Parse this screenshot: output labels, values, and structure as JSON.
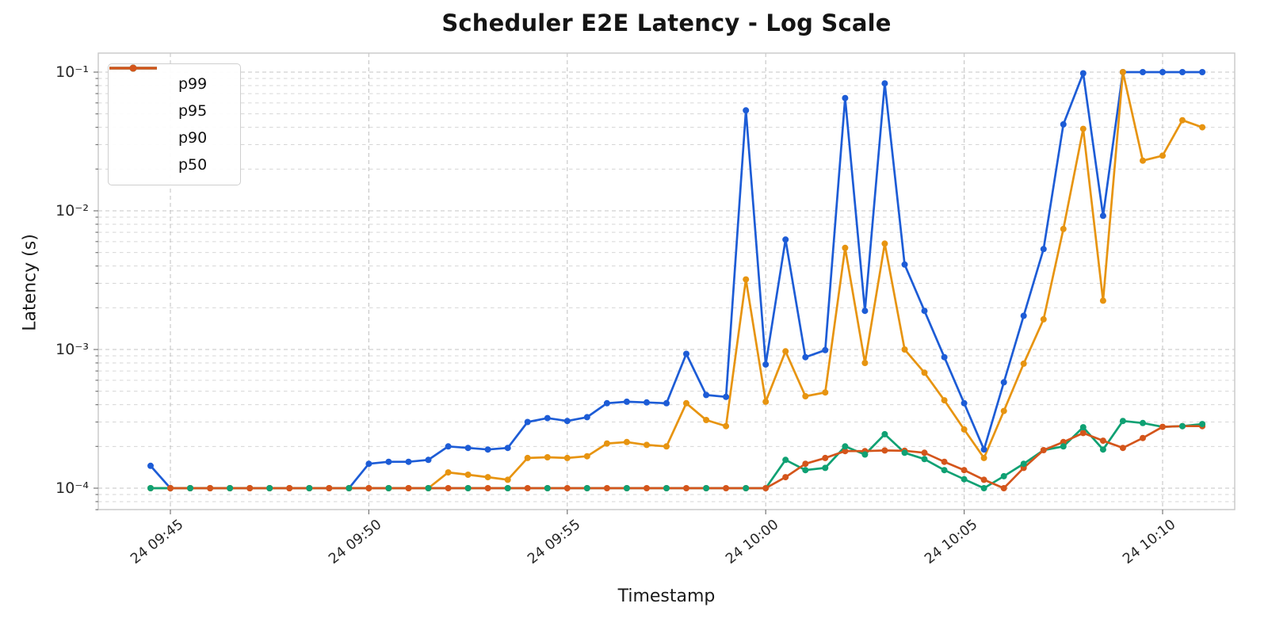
{
  "title": "Scheduler E2E Latency - Log Scale",
  "axes": {
    "x_label": "Timestamp",
    "y_label": "Latency (s)",
    "x_tick_labels": [
      "24 09:45",
      "24 09:50",
      "24 09:55",
      "24 10:00",
      "24 10:05",
      "24 10:10"
    ],
    "y_tick_labels": [
      "10⁻⁴",
      "10⁻³",
      "10⁻²",
      "10⁻¹"
    ]
  },
  "legend": {
    "entries": [
      "p99",
      "p95",
      "p90",
      "p50"
    ],
    "position": "upper-left"
  },
  "colors": {
    "p99": "#1d5cd6",
    "p95": "#e79410",
    "p90": "#0fa173",
    "p50": "#d4551b",
    "grid_major": "#c6c6c6",
    "grid_minor": "#d6d6d6",
    "spine": "#c8c8c8",
    "title_text": "#151515",
    "tick_text": "#262626"
  },
  "chart_data": {
    "type": "line",
    "title": "Scheduler E2E Latency - Log Scale",
    "xlabel": "Timestamp",
    "ylabel": "Latency (s)",
    "y_scale": "log",
    "ylim": [
      7e-05,
      0.137
    ],
    "grid": "both-dashed",
    "legend_position": "upper-left",
    "x_interval_seconds": 30,
    "x_times": [
      "09:44:30",
      "09:45:00",
      "09:45:30",
      "09:46:00",
      "09:46:30",
      "09:47:00",
      "09:47:30",
      "09:48:00",
      "09:48:30",
      "09:49:00",
      "09:49:30",
      "09:50:00",
      "09:50:30",
      "09:51:00",
      "09:51:30",
      "09:52:00",
      "09:52:30",
      "09:53:00",
      "09:53:30",
      "09:54:00",
      "09:54:30",
      "09:55:00",
      "09:55:30",
      "09:56:00",
      "09:56:30",
      "09:57:00",
      "09:57:30",
      "09:58:00",
      "09:58:30",
      "09:59:00",
      "09:59:30",
      "10:00:00",
      "10:00:30",
      "10:01:00",
      "10:01:30",
      "10:02:00",
      "10:02:30",
      "10:03:00",
      "10:03:30",
      "10:04:00",
      "10:04:30",
      "10:05:00",
      "10:05:30",
      "10:06:00",
      "10:06:30",
      "10:07:00",
      "10:07:30",
      "10:08:00",
      "10:08:30",
      "10:09:00",
      "10:09:30",
      "10:10:00",
      "10:10:30",
      "10:11:00"
    ],
    "x_tick_indices": [
      1,
      11,
      21,
      31,
      41,
      51
    ],
    "x_tick_labels": [
      "24 09:45",
      "24 09:50",
      "24 09:55",
      "24 10:00",
      "24 10:05",
      "24 10:10"
    ],
    "series": [
      {
        "name": "p99",
        "color": "#1d5cd6",
        "values": [
          0.000145,
          0.0001,
          0.0001,
          0.0001,
          0.0001,
          0.0001,
          0.0001,
          0.0001,
          0.0001,
          0.0001,
          0.0001,
          0.00015,
          0.000155,
          0.000155,
          0.00016,
          0.0002,
          0.000195,
          0.00019,
          0.000195,
          0.0003,
          0.00032,
          0.000305,
          0.000325,
          0.00041,
          0.00042,
          0.000415,
          0.00041,
          0.00093,
          0.00047,
          0.000455,
          0.053,
          0.00078,
          0.0062,
          0.00088,
          0.00099,
          0.065,
          0.0019,
          0.083,
          0.0041,
          0.0019,
          0.00088,
          0.00041,
          0.00019,
          0.00058,
          0.00175,
          0.0053,
          0.042,
          0.098,
          0.0092,
          0.1,
          0.1,
          0.1,
          0.1,
          0.1
        ]
      },
      {
        "name": "p95",
        "color": "#e79410",
        "values": [
          0.0001,
          0.0001,
          0.0001,
          0.0001,
          0.0001,
          0.0001,
          0.0001,
          0.0001,
          0.0001,
          0.0001,
          0.0001,
          0.0001,
          0.0001,
          0.0001,
          0.0001,
          0.00013,
          0.000125,
          0.00012,
          0.000115,
          0.000165,
          0.000167,
          0.000165,
          0.00017,
          0.00021,
          0.000215,
          0.000205,
          0.0002,
          0.00041,
          0.00031,
          0.00028,
          0.0032,
          0.00042,
          0.00097,
          0.00046,
          0.00049,
          0.0054,
          0.0008,
          0.0058,
          0.001,
          0.00068,
          0.00043,
          0.000265,
          0.000165,
          0.00036,
          0.00079,
          0.00165,
          0.0074,
          0.039,
          0.00225,
          0.1,
          0.023,
          0.025,
          0.045,
          0.04
        ]
      },
      {
        "name": "p90",
        "color": "#0fa173",
        "values": [
          0.0001,
          0.0001,
          0.0001,
          0.0001,
          0.0001,
          0.0001,
          0.0001,
          0.0001,
          0.0001,
          0.0001,
          0.0001,
          0.0001,
          0.0001,
          0.0001,
          0.0001,
          0.0001,
          0.0001,
          0.0001,
          0.0001,
          0.0001,
          0.0001,
          0.0001,
          0.0001,
          0.0001,
          0.0001,
          0.0001,
          0.0001,
          0.0001,
          0.0001,
          0.0001,
          0.0001,
          0.0001,
          0.00016,
          0.000135,
          0.00014,
          0.0002,
          0.000175,
          0.000245,
          0.00018,
          0.000162,
          0.000135,
          0.000116,
          0.0001,
          0.000122,
          0.00015,
          0.000188,
          0.0002,
          0.000275,
          0.00019,
          0.000305,
          0.000295,
          0.000277,
          0.00028,
          0.00029
        ]
      },
      {
        "name": "p50",
        "color": "#d4551b",
        "values": [
          null,
          0.0001,
          0.0001,
          0.0001,
          0.0001,
          0.0001,
          0.0001,
          0.0001,
          0.0001,
          0.0001,
          0.0001,
          0.0001,
          0.0001,
          0.0001,
          0.0001,
          0.0001,
          0.0001,
          0.0001,
          0.0001,
          0.0001,
          0.0001,
          0.0001,
          0.0001,
          0.0001,
          0.0001,
          0.0001,
          0.0001,
          0.0001,
          0.0001,
          0.0001,
          0.0001,
          0.0001,
          0.00012,
          0.00015,
          0.000165,
          0.000185,
          0.000185,
          0.000187,
          0.000186,
          0.00018,
          0.000155,
          0.000135,
          0.000115,
          0.0001,
          0.00014,
          0.000188,
          0.000215,
          0.00025,
          0.00022,
          0.000195,
          0.00023,
          0.000277,
          0.00028,
          0.00028
        ]
      }
    ]
  }
}
